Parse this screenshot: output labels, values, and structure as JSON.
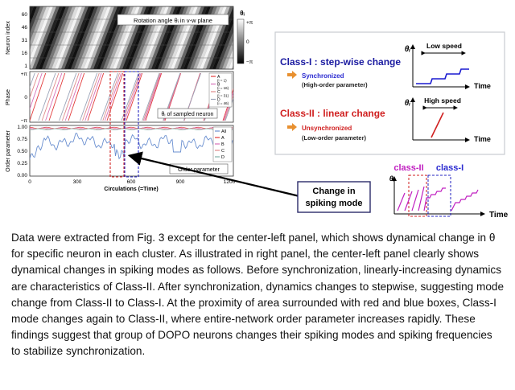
{
  "left_figure": {
    "heatmap": {
      "y_label": "Neuron index",
      "y_ticks": [
        "60",
        "46",
        "31",
        "16",
        "1"
      ],
      "title": "Rotation angle θᵢ in v-w plane",
      "colorbar_title": "θᵢ",
      "colorbar_ticks": [
        "+π",
        "0",
        "−π"
      ]
    },
    "phase": {
      "y_label": "Phase",
      "y_ticks": [
        "+π",
        "0",
        "−π"
      ],
      "legend": [
        {
          "label": "A",
          "sub": "(i = 1)",
          "color": "#e23b3b"
        },
        {
          "label": "B",
          "sub": "(i = 16)",
          "color": "#d770b8"
        },
        {
          "label": "C",
          "sub": "(i = 31)",
          "color": "#e08a8a"
        },
        {
          "label": "D",
          "sub": "(i = 46)",
          "color": "#9aa3b8"
        }
      ],
      "annotation": "θᵢ of sampled neuron"
    },
    "order": {
      "y_label": "Order parameter",
      "y_ticks": [
        "1.00",
        "0.75",
        "0.50",
        "0.25",
        "0.00"
      ],
      "x_ticks": [
        "0",
        "300",
        "600",
        "900",
        "1200"
      ],
      "x_label": "Circulations (=Time)",
      "legend": [
        {
          "label": "All",
          "color": "#6a8fd0"
        },
        {
          "label": "A",
          "color": "#e23b3b"
        },
        {
          "label": "B",
          "color": "#d770b8"
        },
        {
          "label": "C",
          "color": "#e08a8a"
        },
        {
          "label": "D",
          "color": "#7fb0a8"
        }
      ],
      "annotation": "Order parameter"
    }
  },
  "right_panel": {
    "class1_title": "Class-I : step-wise change",
    "class1_state": "Synchronized",
    "class1_param": "(High-order parameter)",
    "class2_title": "Class-II : linear change",
    "class2_state": "Unsynchronized",
    "class2_param": "(Low-order parameter)",
    "low_speed": "Low speed",
    "high_speed": "High speed",
    "theta": "θᵢ",
    "time": "Time"
  },
  "callout": {
    "line1": "Change in",
    "line2": "spiking mode"
  },
  "bottom_right": {
    "class2_label": "class-II",
    "class1_label": "class-I",
    "theta": "θᵢ",
    "time": "Time"
  },
  "caption": "Data were extracted from Fig. 3 except for the center-left panel, which shows dynamical change in θ for specific neuron in each cluster. As illustrated in right panel, the center-left panel clearly shows dynamical changes in spiking modes as follows. Before synchronization, linearly-increasing dynamics are characteristics of Class-II. After synchronization, dynamics changes to stepwise, suggesting mode change from Class-II to Class-I. At the proximity of area surrounded with red and blue boxes, Class-I mode changes again to Class-II, where entire-network order parameter increases rapidly. These findings suggest that group of DOPO neurons changes their spiking modes and spiking frequencies to stabilize synchronization."
}
